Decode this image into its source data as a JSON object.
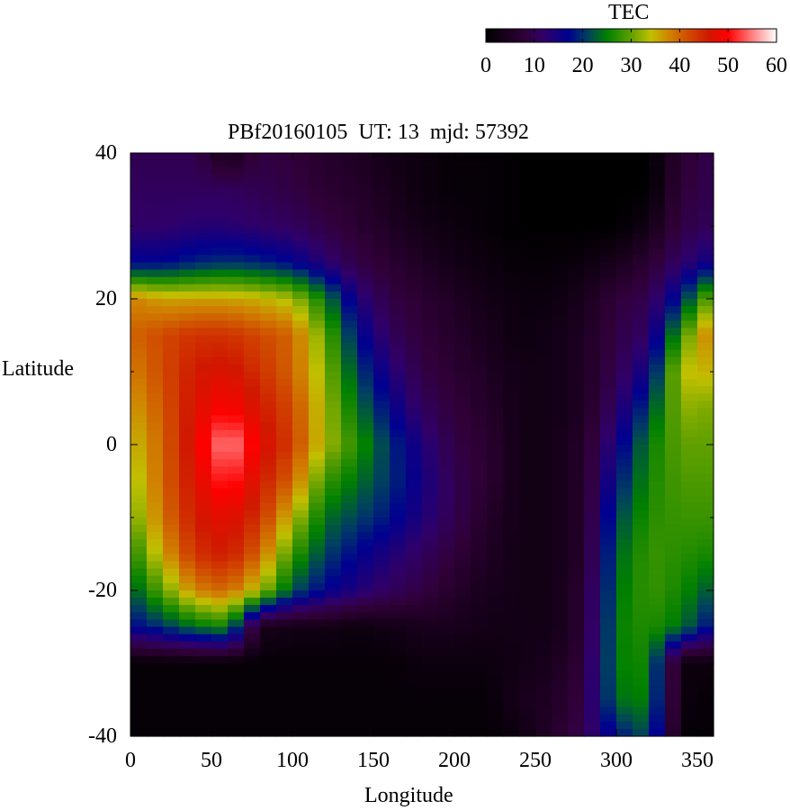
{
  "chart_data": {
    "type": "heatmap",
    "title": "PBf20160105  UT: 13  mjd: 57392",
    "xlabel": "Longitude",
    "ylabel": "Latitude",
    "xlim": [
      0,
      360
    ],
    "ylim": [
      -40,
      40
    ],
    "xticks": [
      "0",
      "50",
      "100",
      "150",
      "200",
      "250",
      "300",
      "350"
    ],
    "yticks": [
      "40",
      "20",
      "0",
      "-20",
      "-40"
    ],
    "colorbar": {
      "label": "TEC",
      "range": [
        0,
        60
      ],
      "ticks": [
        "0",
        "10",
        "20",
        "30",
        "40",
        "50",
        "60"
      ],
      "colormap": [
        [
          0,
          "#000000"
        ],
        [
          8,
          "#300038"
        ],
        [
          12,
          "#300068"
        ],
        [
          17,
          "#000090"
        ],
        [
          21,
          "#004060"
        ],
        [
          25,
          "#008000"
        ],
        [
          30,
          "#60a000"
        ],
        [
          34,
          "#c0c000"
        ],
        [
          38,
          "#d08000"
        ],
        [
          42,
          "#d04800"
        ],
        [
          46,
          "#d01800"
        ],
        [
          50,
          "#ff0000"
        ],
        [
          55,
          "#ff8080"
        ],
        [
          60,
          "#ffffff"
        ]
      ]
    },
    "lon": [
      0,
      20,
      40,
      60,
      80,
      100,
      120,
      140,
      160,
      180,
      200,
      220,
      240,
      260,
      280,
      300,
      320,
      340,
      360
    ],
    "lat": [
      40,
      35,
      30,
      25,
      20,
      15,
      10,
      5,
      0,
      -5,
      -10,
      -15,
      -20,
      -25,
      -30,
      -35,
      -40
    ],
    "values": [
      [
        10,
        10,
        10,
        3,
        9,
        8,
        6,
        5,
        3,
        2,
        1,
        1,
        0,
        0,
        0,
        0,
        0,
        7,
        10
      ],
      [
        11,
        11,
        11,
        11,
        10,
        9,
        7,
        6,
        4,
        2,
        1,
        1,
        0,
        0,
        0,
        0,
        0,
        8,
        10
      ],
      [
        12,
        12,
        13,
        13,
        12,
        11,
        9,
        7,
        5,
        3,
        2,
        1,
        0,
        0,
        0,
        0,
        3,
        9,
        11
      ],
      [
        17,
        17,
        19,
        20,
        19,
        17,
        13,
        9,
        7,
        5,
        3,
        2,
        1,
        1,
        2,
        4,
        7,
        12,
        16
      ],
      [
        38,
        36,
        36,
        36,
        35,
        33,
        25,
        14,
        9,
        7,
        5,
        3,
        2,
        2,
        4,
        8,
        10,
        19,
        32
      ],
      [
        40,
        42,
        44,
        44,
        42,
        40,
        30,
        18,
        11,
        8,
        6,
        4,
        2,
        3,
        5,
        9,
        12,
        28,
        40
      ],
      [
        38,
        42,
        46,
        47,
        44,
        40,
        32,
        21,
        14,
        9,
        7,
        5,
        3,
        3,
        5,
        10,
        16,
        34,
        35
      ],
      [
        36,
        41,
        47,
        50,
        46,
        42,
        33,
        24,
        17,
        11,
        8,
        6,
        3,
        3,
        5,
        12,
        21,
        32,
        31
      ],
      [
        34,
        40,
        48,
        56,
        48,
        43,
        33,
        27,
        20,
        14,
        9,
        7,
        3,
        3,
        6,
        15,
        25,
        30,
        30
      ],
      [
        32,
        40,
        47,
        52,
        46,
        40,
        28,
        24,
        20,
        15,
        10,
        7,
        3,
        3,
        6,
        18,
        26,
        29,
        29
      ],
      [
        30,
        39,
        46,
        48,
        44,
        34,
        24,
        21,
        18,
        14,
        10,
        6,
        3,
        3,
        6,
        21,
        27,
        28,
        28
      ],
      [
        26,
        36,
        44,
        46,
        40,
        28,
        21,
        17,
        14,
        11,
        8,
        5,
        3,
        3,
        6,
        23,
        28,
        27,
        26
      ],
      [
        22,
        30,
        38,
        40,
        33,
        22,
        17,
        14,
        11,
        9,
        6,
        4,
        3,
        3,
        7,
        24,
        28,
        26,
        22
      ],
      [
        17,
        20,
        24,
        26,
        4,
        3,
        3,
        2,
        3,
        4,
        4,
        3,
        3,
        3,
        7,
        25,
        27,
        24,
        17
      ],
      [
        1,
        1,
        1,
        1,
        1,
        1,
        1,
        1,
        1,
        2,
        2,
        2,
        3,
        4,
        8,
        25,
        26,
        2,
        2
      ],
      [
        1,
        1,
        1,
        1,
        1,
        1,
        1,
        1,
        1,
        1,
        1,
        1,
        4,
        5,
        9,
        24,
        25,
        2,
        1
      ],
      [
        1,
        1,
        1,
        1,
        1,
        1,
        1,
        1,
        1,
        1,
        1,
        1,
        2,
        6,
        10,
        18,
        22,
        1,
        1
      ]
    ]
  }
}
